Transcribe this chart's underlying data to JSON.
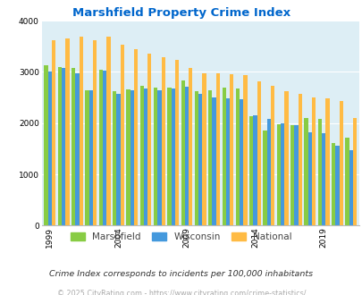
{
  "title": "Marshfield Property Crime Index",
  "title_color": "#0066cc",
  "subtitle": "Crime Index corresponds to incidents per 100,000 inhabitants",
  "footer": "© 2025 CityRating.com - https://www.cityrating.com/crime-statistics/",
  "years": [
    1999,
    2000,
    2001,
    2002,
    2003,
    2004,
    2005,
    2006,
    2007,
    2008,
    2009,
    2010,
    2011,
    2012,
    2013,
    2014,
    2015,
    2016,
    2017,
    2018,
    2019,
    2020,
    2021
  ],
  "marshfield": [
    3130,
    3100,
    3080,
    2640,
    3050,
    2620,
    2660,
    2720,
    2690,
    2690,
    2840,
    2620,
    2640,
    2690,
    2680,
    2130,
    1850,
    1970,
    1960,
    2100,
    2090,
    1620,
    1720
  ],
  "wisconsin": [
    3000,
    3080,
    2970,
    2650,
    3020,
    2580,
    2640,
    2680,
    2650,
    2680,
    2710,
    2570,
    2510,
    2490,
    2460,
    2160,
    2080,
    2000,
    1960,
    1820,
    1800,
    1560,
    1480
  ],
  "national": [
    3620,
    3650,
    3690,
    3620,
    3680,
    3530,
    3440,
    3360,
    3290,
    3240,
    3080,
    2980,
    2970,
    2960,
    2930,
    2820,
    2730,
    2620,
    2570,
    2510,
    2490,
    2430,
    2100
  ],
  "bar_colors": [
    "#88cc44",
    "#4499dd",
    "#ffbb44"
  ],
  "bg_color": "#ddeef5",
  "ylim": [
    0,
    4000
  ],
  "yticks": [
    0,
    1000,
    2000,
    3000,
    4000
  ],
  "xlabel_years": [
    1999,
    2004,
    2009,
    2014,
    2019
  ],
  "legend_labels": [
    "Marshfield",
    "Wisconsin",
    "National"
  ],
  "legend_color": "#444444",
  "subtitle_color": "#333333",
  "footer_color": "#aaaaaa"
}
